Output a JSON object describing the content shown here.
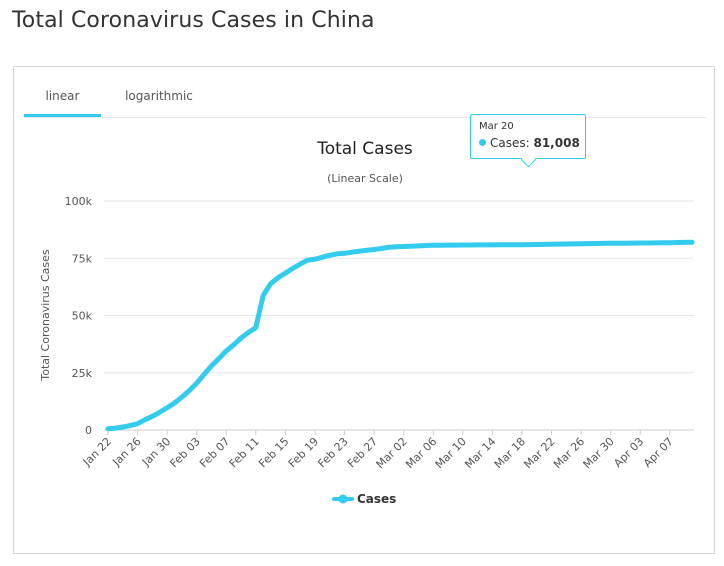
{
  "page": {
    "title": "Total Coronavirus Cases in China"
  },
  "tabs": [
    {
      "label": "linear",
      "active": true
    },
    {
      "label": "logarithmic",
      "active": false
    }
  ],
  "tooltip": {
    "date": "Mar 20",
    "series": "Cases",
    "value": "81,008"
  },
  "colors": {
    "series": "#33ccee",
    "grid": "#e6e6e6",
    "axis": "#cccccc"
  },
  "chart_data": {
    "type": "line",
    "title": "Total Cases",
    "subtitle": "(Linear Scale)",
    "ylabel": "Total Coronavirus Cases",
    "xlabel": "",
    "ylim": [
      0,
      100000
    ],
    "yticks": [
      0,
      25000,
      50000,
      75000,
      100000
    ],
    "ytick_labels": [
      "0",
      "25k",
      "50k",
      "75k",
      "100k"
    ],
    "x_tick_labels": [
      "Jan 22",
      "Jan 26",
      "Jan 30",
      "Feb 03",
      "Feb 07",
      "Feb 11",
      "Feb 15",
      "Feb 19",
      "Feb 23",
      "Feb 27",
      "Mar 02",
      "Mar 06",
      "Mar 10",
      "Mar 14",
      "Mar 18",
      "Mar 22",
      "Mar 26",
      "Mar 30",
      "Apr 03",
      "Apr 07"
    ],
    "legend": "bottom-center",
    "grid": true,
    "series": [
      {
        "name": "Cases",
        "x": [
          "Jan 22",
          "Jan 23",
          "Jan 24",
          "Jan 25",
          "Jan 26",
          "Jan 27",
          "Jan 28",
          "Jan 29",
          "Jan 30",
          "Jan 31",
          "Feb 01",
          "Feb 02",
          "Feb 03",
          "Feb 04",
          "Feb 05",
          "Feb 06",
          "Feb 07",
          "Feb 08",
          "Feb 09",
          "Feb 10",
          "Feb 11",
          "Feb 12",
          "Feb 13",
          "Feb 14",
          "Feb 15",
          "Feb 16",
          "Feb 17",
          "Feb 18",
          "Feb 19",
          "Feb 20",
          "Feb 21",
          "Feb 22",
          "Feb 23",
          "Feb 24",
          "Feb 25",
          "Feb 26",
          "Feb 27",
          "Feb 28",
          "Feb 29",
          "Mar 01",
          "Mar 02",
          "Mar 03",
          "Mar 04",
          "Mar 05",
          "Mar 06",
          "Mar 07",
          "Mar 08",
          "Mar 09",
          "Mar 10",
          "Mar 11",
          "Mar 12",
          "Mar 13",
          "Mar 14",
          "Mar 15",
          "Mar 16",
          "Mar 17",
          "Mar 18",
          "Mar 19",
          "Mar 20",
          "Mar 21",
          "Mar 22",
          "Mar 23",
          "Mar 24",
          "Mar 25",
          "Mar 26",
          "Mar 27",
          "Mar 28",
          "Mar 29",
          "Mar 30",
          "Mar 31",
          "Apr 01",
          "Apr 02",
          "Apr 03",
          "Apr 04",
          "Apr 05",
          "Apr 06",
          "Apr 07",
          "Apr 08",
          "Apr 09",
          "Apr 10"
        ],
        "values": [
          571,
          830,
          1287,
          1975,
          2744,
          4515,
          5974,
          7711,
          9692,
          11791,
          14380,
          17205,
          20440,
          24324,
          28018,
          31161,
          34546,
          37198,
          40171,
          42638,
          44653,
          58761,
          63851,
          66492,
          68500,
          70548,
          72436,
          74185,
          74576,
          75465,
          76288,
          76936,
          77150,
          77658,
          78064,
          78497,
          78824,
          79251,
          79824,
          80026,
          80151,
          80270,
          80409,
          80552,
          80651,
          80695,
          80735,
          80754,
          80778,
          80793,
          80813,
          80824,
          80844,
          80860,
          80881,
          80894,
          80928,
          80967,
          81008,
          81054,
          81093,
          81171,
          81218,
          81285,
          81340,
          81394,
          81439,
          81470,
          81518,
          81554,
          81589,
          81620,
          81639,
          81669,
          81708,
          81740,
          81802,
          81865,
          81907,
          81953
        ]
      }
    ]
  }
}
